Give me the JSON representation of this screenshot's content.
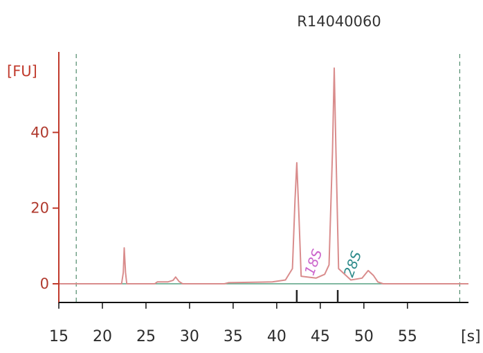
{
  "chart_data": {
    "type": "line",
    "title": "R14040060",
    "ylabel": "[FU]",
    "xlabel": "[s]",
    "xlim": [
      15,
      62
    ],
    "ylim": [
      0,
      60
    ],
    "x_ticks": [
      15,
      20,
      25,
      30,
      35,
      40,
      45,
      50,
      55
    ],
    "y_ticks": [
      0,
      20,
      40
    ],
    "grid": false,
    "legend": "none",
    "colors": {
      "axis": "#c0392b",
      "tick_labels_y": "#b03a2e",
      "tick_labels_x": "#2b2b2b",
      "title": "#333333",
      "series": "#d98c8c",
      "baseline": "#57a082",
      "marker_dashed": "#4f8a6a",
      "peak_ticks": "#222222"
    },
    "dashed_markers_x": [
      17,
      61
    ],
    "peak_markers_x": [
      42.3,
      47
    ],
    "annotations": [
      {
        "text": "18S",
        "x": 44.2,
        "y": 2,
        "color": "#cc66cc"
      },
      {
        "text": "28S",
        "x": 48.7,
        "y": 1.5,
        "color": "#2e8b8b"
      }
    ],
    "series": [
      {
        "values": [
          [
            15,
            0
          ],
          [
            22.2,
            0
          ],
          [
            22.4,
            3
          ],
          [
            22.5,
            9.5
          ],
          [
            22.65,
            3
          ],
          [
            22.8,
            0
          ],
          [
            26,
            0
          ],
          [
            26.3,
            0.5
          ],
          [
            27.5,
            0.5
          ],
          [
            28.1,
            0.9
          ],
          [
            28.4,
            1.8
          ],
          [
            28.8,
            0.6
          ],
          [
            29.2,
            0
          ],
          [
            34,
            0
          ],
          [
            34.5,
            0.3
          ],
          [
            39.5,
            0.5
          ],
          [
            41,
            1
          ],
          [
            41.8,
            4
          ],
          [
            42.1,
            22
          ],
          [
            42.3,
            32
          ],
          [
            42.55,
            18
          ],
          [
            42.8,
            2
          ],
          [
            44.5,
            1.5
          ],
          [
            45.5,
            2.5
          ],
          [
            46,
            5
          ],
          [
            46.4,
            35
          ],
          [
            46.6,
            57
          ],
          [
            46.8,
            35
          ],
          [
            47.1,
            4
          ],
          [
            48.5,
            1
          ],
          [
            49.8,
            1.5
          ],
          [
            50.5,
            3.5
          ],
          [
            51.1,
            2.2
          ],
          [
            51.6,
            0.5
          ],
          [
            52.2,
            0
          ],
          [
            62,
            0
          ]
        ]
      }
    ]
  }
}
